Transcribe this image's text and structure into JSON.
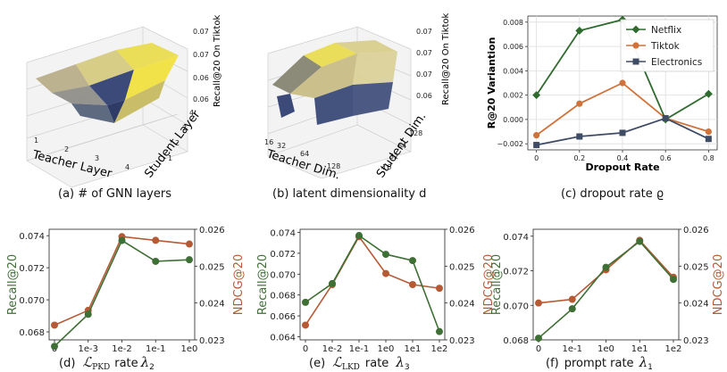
{
  "colors": {
    "green": "#3e6f34",
    "orange": "#b55a35",
    "netflix": "#2f6b2f",
    "tiktok": "#d0723a",
    "electronics": "#3f4c66",
    "yellow": "#f2e24a",
    "navy": "#3b4a78"
  },
  "chart_data": [
    {
      "type": "surface3d",
      "caption": "(a) # of GNN layers",
      "xlabel": "Teacher Layer",
      "ylabel": "Student Layer",
      "zlabel": "Recall@20 On Tiktok",
      "x_ticks": [
        "1",
        "2",
        "3",
        "4"
      ],
      "y_ticks": [
        "1",
        "2",
        "3",
        "4"
      ],
      "z_ticks": [
        "0.06",
        "0.06",
        "0.07",
        "0.07"
      ]
    },
    {
      "type": "surface3d",
      "caption": "(b)  latent dimensionality d",
      "xlabel": "Teacher Dim.",
      "ylabel": "Student Dim.",
      "zlabel": "Recall@20 On Tiktok",
      "x_ticks": [
        "16",
        "32",
        "64",
        "128"
      ],
      "y_ticks": [
        "16",
        "32",
        "64",
        "128"
      ],
      "z_ticks": [
        "0.06",
        "0.07",
        "0.07",
        "0.07"
      ]
    },
    {
      "type": "line",
      "caption": "(c) dropout rate ϱ",
      "xlabel": "Dropout Rate",
      "ylabel": "R@20 Variantion",
      "x": [
        0,
        0.2,
        0.4,
        0.6,
        0.8
      ],
      "x_tick_labels": [
        "0",
        "0.2",
        "0.4",
        "0.6",
        "0.8"
      ],
      "ylim": [
        -0.0025,
        0.0085
      ],
      "y_ticks": [
        -0.002,
        0.0,
        0.002,
        0.004,
        0.006,
        0.008
      ],
      "y_tick_labels": [
        "−0.002",
        "0.000",
        "0.002",
        "0.004",
        "0.006",
        "0.008"
      ],
      "legend_position": "top-right",
      "series": [
        {
          "name": "Netflix",
          "marker": "diamond",
          "color": "#2f6b2f",
          "values": [
            0.002,
            0.0073,
            0.0082,
            0.0,
            0.0021
          ]
        },
        {
          "name": "Tiktok",
          "marker": "circle",
          "color": "#d0723a",
          "values": [
            -0.0013,
            0.0013,
            0.003,
            0.0001,
            -0.001
          ]
        },
        {
          "name": "Electronics",
          "marker": "square",
          "color": "#3f4c66",
          "values": [
            -0.0021,
            -0.0014,
            -0.0011,
            0.0001,
            -0.0016
          ]
        }
      ]
    },
    {
      "type": "dual-axis-line",
      "caption_prefix": "(d)",
      "caption_symbol": "ℒ",
      "caption_sub": "PKD",
      "caption_text": "rate",
      "caption_var": "λ",
      "caption_var_sub": "2",
      "categories": [
        "0",
        "1e-3",
        "1e-2",
        "1e-1",
        "1e0"
      ],
      "left_label": "Recall@20",
      "right_label": "NDCG@20",
      "left_lim": [
        0.0675,
        0.0744
      ],
      "right_lim": [
        0.023,
        0.026
      ],
      "left_ticks": [
        0.068,
        0.07,
        0.072,
        0.074
      ],
      "left_tick_labels": [
        "0.068",
        "0.070",
        "0.072",
        "0.074"
      ],
      "right_ticks": [
        0.023,
        0.024,
        0.025,
        0.026
      ],
      "right_tick_labels": [
        "0.023",
        "0.024",
        "0.025",
        "0.026"
      ],
      "series": [
        {
          "name": "Recall@20",
          "axis": "left",
          "values": [
            0.0671,
            0.0691,
            0.0737,
            0.0724,
            0.0725
          ]
        },
        {
          "name": "NDCG@20",
          "axis": "right",
          "values": [
            0.0234,
            0.0238,
            0.0258,
            0.0257,
            0.0256
          ]
        }
      ]
    },
    {
      "type": "dual-axis-line",
      "caption_prefix": "(e)",
      "caption_symbol": "ℒ",
      "caption_sub": "LKD",
      "caption_text": "rate",
      "caption_var": "λ",
      "caption_var_sub": "3",
      "categories": [
        "0",
        "1e-2",
        "1e-1",
        "1e0",
        "1e1",
        "1e2"
      ],
      "left_label": "Recall@20",
      "right_label": "NDCG@20",
      "left_lim": [
        0.0637,
        0.0743
      ],
      "right_lim": [
        0.023,
        0.026
      ],
      "left_ticks": [
        0.064,
        0.066,
        0.068,
        0.07,
        0.072,
        0.074
      ],
      "left_tick_labels": [
        "0.064",
        "0.066",
        "0.068",
        "0.070",
        "0.072",
        "0.074"
      ],
      "right_ticks": [
        0.023,
        0.024,
        0.025,
        0.026
      ],
      "right_tick_labels": [
        "0.023",
        "0.024",
        "0.025",
        "0.026"
      ],
      "series": [
        {
          "name": "Recall@20",
          "axis": "left",
          "values": [
            0.0673,
            0.0691,
            0.0737,
            0.0719,
            0.0713,
            0.0645
          ]
        },
        {
          "name": "NDCG@20",
          "axis": "right",
          "values": [
            0.0234,
            0.0245,
            0.0258,
            0.0248,
            0.0245,
            0.0244
          ]
        }
      ]
    },
    {
      "type": "dual-axis-line",
      "caption_prefix": "(f)",
      "caption_text": "prompt rate",
      "caption_var": "λ",
      "caption_var_sub": "1",
      "categories": [
        "0",
        "1e-1",
        "1e0",
        "1e1",
        "1e2"
      ],
      "left_label": "Recall@20",
      "right_label": "NDCG@20",
      "left_lim": [
        0.068,
        0.0744
      ],
      "right_lim": [
        0.023,
        0.026
      ],
      "left_ticks": [
        0.068,
        0.07,
        0.072,
        0.074
      ],
      "left_tick_labels": [
        "0.068",
        "0.070",
        "0.072",
        "0.074"
      ],
      "right_ticks": [
        0.023,
        0.024,
        0.025,
        0.026
      ],
      "right_tick_labels": [
        "0.023",
        "0.024",
        "0.025",
        "0.026"
      ],
      "series": [
        {
          "name": "Recall@20",
          "axis": "left",
          "values": [
            0.0681,
            0.0698,
            0.0722,
            0.0737,
            0.0715
          ]
        },
        {
          "name": "NDCG@20",
          "axis": "right",
          "values": [
            0.024,
            0.0241,
            0.0249,
            0.0257,
            0.0247
          ]
        }
      ]
    }
  ]
}
